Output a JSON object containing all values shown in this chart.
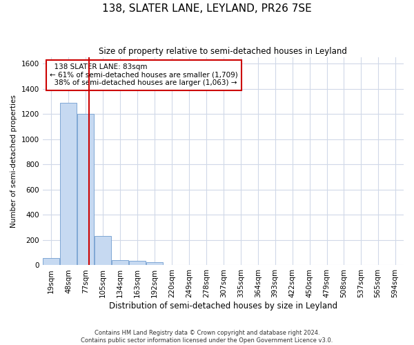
{
  "title": "138, SLATER LANE, LEYLAND, PR26 7SE",
  "subtitle": "Size of property relative to semi-detached houses in Leyland",
  "xlabel": "Distribution of semi-detached houses by size in Leyland",
  "ylabel": "Number of semi-detached properties",
  "footer_line1": "Contains HM Land Registry data © Crown copyright and database right 2024.",
  "footer_line2": "Contains public sector information licensed under the Open Government Licence v3.0.",
  "property_label": "138 SLATER LANE: 83sqm",
  "pct_smaller": 61,
  "count_smaller": 1709,
  "pct_larger": 38,
  "count_larger": 1063,
  "bin_labels": [
    "19sqm",
    "48sqm",
    "77sqm",
    "105sqm",
    "134sqm",
    "163sqm",
    "192sqm",
    "220sqm",
    "249sqm",
    "278sqm",
    "307sqm",
    "335sqm",
    "364sqm",
    "393sqm",
    "422sqm",
    "450sqm",
    "479sqm",
    "508sqm",
    "537sqm",
    "565sqm",
    "594sqm"
  ],
  "bin_edges": [
    4.5,
    33.5,
    62.5,
    91.5,
    120.5,
    149.5,
    178.5,
    207.5,
    236.5,
    265.5,
    294.5,
    323.5,
    352.5,
    381.5,
    410.5,
    439.5,
    468.5,
    497.5,
    526.5,
    554.5,
    583.5,
    612.5
  ],
  "bin_values": [
    55,
    1290,
    1200,
    230,
    40,
    35,
    25,
    0,
    0,
    0,
    0,
    0,
    0,
    0,
    0,
    0,
    0,
    0,
    0,
    0,
    0
  ],
  "bar_color": "#c6d9f1",
  "bar_edge_color": "#7EA6D4",
  "grid_color": "#d0d8e8",
  "annotation_box_color": "#cc0000",
  "red_line_x": 83,
  "ylim": [
    0,
    1650
  ],
  "yticks": [
    0,
    200,
    400,
    600,
    800,
    1000,
    1200,
    1400,
    1600
  ],
  "bg_color": "#ffffff"
}
